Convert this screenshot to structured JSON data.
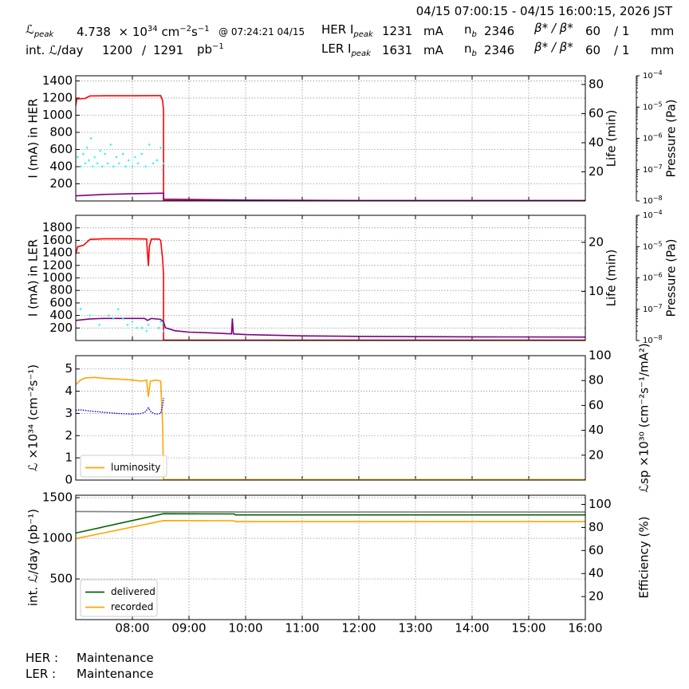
{
  "header": {
    "time_range": "04/15 07:00:15 - 04/15 16:00:15, 2026 JST",
    "lpeak_label": "peak",
    "lpeak_value": "4.738",
    "lpeak_exp": "34",
    "lpeak_unit": "cm",
    "lpeak_unit2": "s",
    "lpeak_time": "@ 07:24:21 04/15",
    "intl_label": "int. ",
    "intl_label2": "/day",
    "intl_value": "1200",
    "intl_sep": "/",
    "intl_max": "1291",
    "intl_unit": "pb",
    "her_ipeak_label": "HER I",
    "her_ipeak_sub": "peak",
    "her_ipeak_value": "1231",
    "ler_ipeak_label": "LER I",
    "ler_ipeak_sub": "peak",
    "ler_ipeak_value": "1631",
    "current_unit": "mA",
    "nb_label": "n",
    "nb_sub": "b",
    "her_nb": "2346",
    "ler_nb": "2346",
    "beta_label": "β* / β*",
    "her_beta": "60",
    "her_beta2": "/ 1",
    "ler_beta": "60",
    "ler_beta2": "/ 1",
    "beta_unit": "mm"
  },
  "status": {
    "her_label": "HER :",
    "her_value": "Maintenance",
    "ler_label": "LER :",
    "ler_value": "Maintenance"
  },
  "colors": {
    "current": "#ff0000",
    "life": "#800080",
    "pressure": "#00ffff",
    "luminosity": "#ffa500",
    "specific": "#0000ff",
    "delivered": "#006400",
    "recorded": "#ffa500",
    "reference": "#808080"
  },
  "chart_data": [
    {
      "type": "line",
      "panel": "HER",
      "xlabel": "",
      "ylabel": "I (mA) in HER",
      "y2label": "Life (min)",
      "y3label": "Pressure (Pa)",
      "xlim": [
        "07:00",
        "16:00"
      ],
      "ylim": [
        0,
        1460
      ],
      "y2lim": [
        0,
        86
      ],
      "y3lim_log10": [
        -8,
        -4
      ],
      "yticks": [
        200,
        400,
        600,
        800,
        1000,
        1200,
        1400
      ],
      "y2ticks": [
        20,
        40,
        60,
        80
      ],
      "y3ticks_exp": [
        -8,
        -7,
        -6,
        -5,
        -4
      ],
      "grid": true,
      "series": [
        {
          "role": "current",
          "axis": "y",
          "points": [
            [
              "07:00",
              1110
            ],
            [
              "07:01",
              1190
            ],
            [
              "07:10",
              1195
            ],
            [
              "07:15",
              1225
            ],
            [
              "07:30",
              1227
            ],
            [
              "08:00",
              1227
            ],
            [
              "08:25",
              1228
            ],
            [
              "08:30",
              1228
            ],
            [
              "08:32",
              1170
            ],
            [
              "08:33",
              1060
            ],
            [
              "08:33",
              5
            ],
            [
              "16:00",
              5
            ]
          ]
        },
        {
          "role": "life",
          "axis": "y2",
          "points": [
            [
              "07:00",
              3.5
            ],
            [
              "07:30",
              4.5
            ],
            [
              "08:00",
              5.0
            ],
            [
              "08:30",
              5.3
            ],
            [
              "08:33",
              5.3
            ],
            [
              "08:33",
              1.2
            ],
            [
              "10:00",
              0.6
            ],
            [
              "12:00",
              0.3
            ],
            [
              "16:00",
              0.3
            ]
          ]
        },
        {
          "role": "pressure",
          "axis": "y3",
          "points": [
            [
              "07:02",
              -6.6
            ],
            [
              "07:05",
              -6.9
            ],
            [
              "07:08",
              -6.5
            ],
            [
              "07:10",
              -6.8
            ],
            [
              "07:12",
              -6.3
            ],
            [
              "07:14",
              -6.7
            ],
            [
              "07:16",
              -6.0
            ],
            [
              "07:18",
              -6.9
            ],
            [
              "07:20",
              -6.6
            ],
            [
              "07:23",
              -6.8
            ],
            [
              "07:26",
              -6.4
            ],
            [
              "07:28",
              -6.9
            ],
            [
              "07:31",
              -6.5
            ],
            [
              "07:34",
              -6.8
            ],
            [
              "07:37",
              -6.2
            ],
            [
              "07:40",
              -6.9
            ],
            [
              "07:43",
              -6.6
            ],
            [
              "07:46",
              -6.8
            ],
            [
              "07:50",
              -6.5
            ],
            [
              "07:53",
              -6.9
            ],
            [
              "07:56",
              -6.7
            ],
            [
              "08:00",
              -6.9
            ],
            [
              "08:03",
              -6.6
            ],
            [
              "08:06",
              -6.8
            ],
            [
              "08:10",
              -6.5
            ],
            [
              "08:14",
              -6.9
            ],
            [
              "08:18",
              -6.2
            ],
            [
              "08:22",
              -6.8
            ],
            [
              "08:26",
              -6.7
            ],
            [
              "08:30",
              -6.3
            ],
            [
              "08:32",
              -7.0
            ],
            [
              "08:33",
              -6.8
            ]
          ]
        }
      ]
    },
    {
      "type": "line",
      "panel": "LER",
      "xlabel": "",
      "ylabel": "I (mA) in LER",
      "y2label": "Life (min)",
      "y3label": "Pressure (Pa)",
      "xlim": [
        "07:00",
        "16:00"
      ],
      "ylim": [
        0,
        2000
      ],
      "y2lim": [
        0,
        25.5
      ],
      "y3lim_log10": [
        -8,
        -4
      ],
      "yticks": [
        200,
        400,
        600,
        800,
        1000,
        1200,
        1400,
        1600,
        1800
      ],
      "y2ticks": [
        10,
        20
      ],
      "y3ticks_exp": [
        -8,
        -7,
        -6,
        -5,
        -4
      ],
      "grid": true,
      "series": [
        {
          "role": "current",
          "axis": "y",
          "points": [
            [
              "07:00",
              1380
            ],
            [
              "07:02",
              1500
            ],
            [
              "07:08",
              1520
            ],
            [
              "07:15",
              1615
            ],
            [
              "07:30",
              1625
            ],
            [
              "08:00",
              1625
            ],
            [
              "08:15",
              1622
            ],
            [
              "08:16",
              1400
            ],
            [
              "08:17",
              1190
            ],
            [
              "08:18",
              1500
            ],
            [
              "08:20",
              1620
            ],
            [
              "08:28",
              1622
            ],
            [
              "08:30",
              1600
            ],
            [
              "08:32",
              1300
            ],
            [
              "08:33",
              1050
            ],
            [
              "08:33",
              5
            ],
            [
              "16:00",
              5
            ]
          ]
        },
        {
          "role": "life",
          "axis": "y2",
          "points": [
            [
              "07:00",
              4.1
            ],
            [
              "07:15",
              4.4
            ],
            [
              "07:30",
              4.5
            ],
            [
              "08:00",
              4.5
            ],
            [
              "08:13",
              4.5
            ],
            [
              "08:16",
              4.1
            ],
            [
              "08:20",
              4.5
            ],
            [
              "08:30",
              4.3
            ],
            [
              "08:33",
              3.8
            ],
            [
              "08:35",
              2.6
            ],
            [
              "08:45",
              2.0
            ],
            [
              "09:00",
              1.7
            ],
            [
              "09:15",
              1.6
            ],
            [
              "09:30",
              1.5
            ],
            [
              "09:45",
              1.35
            ],
            [
              "09:46",
              4.5
            ],
            [
              "09:47",
              1.35
            ],
            [
              "10:00",
              1.2
            ],
            [
              "11:00",
              0.95
            ],
            [
              "12:00",
              0.85
            ],
            [
              "14:00",
              0.75
            ],
            [
              "16:00",
              0.7
            ]
          ]
        },
        {
          "role": "pressure",
          "axis": "y3",
          "points": [
            [
              "07:05",
              -7.0
            ],
            [
              "07:15",
              -7.2
            ],
            [
              "07:25",
              -7.5
            ],
            [
              "07:35",
              -7.2
            ],
            [
              "07:40",
              -7.3
            ],
            [
              "07:45",
              -7.0
            ],
            [
              "07:50",
              -7.3
            ],
            [
              "07:55",
              -7.5
            ],
            [
              "08:00",
              -7.4
            ],
            [
              "08:05",
              -7.6
            ],
            [
              "08:10",
              -7.6
            ],
            [
              "08:15",
              -7.7
            ],
            [
              "08:17",
              -7.5
            ],
            [
              "08:28",
              -7.6
            ],
            [
              "08:30",
              -7.4
            ],
            [
              "08:32",
              -7.5
            ],
            [
              "08:33",
              -7.7
            ]
          ]
        }
      ]
    },
    {
      "type": "line",
      "panel": "luminosity",
      "xlabel": "",
      "ylabel": "ℒ ×10³⁴ (cm⁻²s⁻¹)",
      "y2label": "ℒsp ×10³⁰ (cm⁻²s⁻¹/mA²)",
      "xlim": [
        "07:00",
        "16:00"
      ],
      "ylim": [
        0,
        5.6
      ],
      "y2lim": [
        0,
        100
      ],
      "yticks": [
        0,
        1,
        2,
        3,
        4,
        5
      ],
      "y2ticks": [
        20,
        40,
        60,
        80,
        100
      ],
      "grid": true,
      "legend": {
        "position": "bottom-left",
        "entries": [
          "luminosity"
        ]
      },
      "series": [
        {
          "name": "luminosity",
          "role": "luminosity",
          "axis": "y",
          "points": [
            [
              "07:00",
              4.3
            ],
            [
              "07:05",
              4.5
            ],
            [
              "07:10",
              4.6
            ],
            [
              "07:20",
              4.62
            ],
            [
              "07:30",
              4.58
            ],
            [
              "07:45",
              4.55
            ],
            [
              "08:00",
              4.5
            ],
            [
              "08:10",
              4.45
            ],
            [
              "08:15",
              4.5
            ],
            [
              "08:17",
              3.75
            ],
            [
              "08:19",
              4.45
            ],
            [
              "08:25",
              4.5
            ],
            [
              "08:30",
              4.45
            ],
            [
              "08:32",
              2.5
            ],
            [
              "08:33",
              0.02
            ],
            [
              "16:00",
              0.02
            ]
          ]
        },
        {
          "role": "specific",
          "axis": "y2",
          "points": [
            [
              "07:00",
              56
            ],
            [
              "07:05",
              56.5
            ],
            [
              "07:15",
              55.5
            ],
            [
              "07:30",
              54.5
            ],
            [
              "07:45",
              53.5
            ],
            [
              "08:00",
              53
            ],
            [
              "08:10",
              53.5
            ],
            [
              "08:14",
              55
            ],
            [
              "08:17",
              58
            ],
            [
              "08:20",
              54.5
            ],
            [
              "08:25",
              53
            ],
            [
              "08:30",
              53.5
            ],
            [
              "08:32",
              60
            ],
            [
              "08:33",
              66
            ]
          ]
        }
      ]
    },
    {
      "type": "line",
      "panel": "integrated",
      "xlabel": "",
      "ylabel": "int. ℒ/day (pb⁻¹)",
      "y2label": "Efficiency (%)",
      "xlim": [
        "07:00",
        "16:00"
      ],
      "ylim": [
        0,
        1530
      ],
      "y2lim": [
        0,
        108
      ],
      "yticks": [
        500,
        1000,
        1500
      ],
      "y2ticks": [
        20,
        40,
        60,
        80,
        100
      ],
      "xticks": [
        "08:00",
        "09:00",
        "10:00",
        "11:00",
        "12:00",
        "13:00",
        "14:00",
        "15:00",
        "16:00"
      ],
      "grid": true,
      "legend": {
        "position": "bottom-left",
        "entries": [
          "delivered",
          "recorded"
        ]
      },
      "series": [
        {
          "name": "delivered",
          "role": "delivered",
          "axis": "y",
          "points": [
            [
              "07:00",
              1065
            ],
            [
              "08:33",
              1302
            ],
            [
              "09:48",
              1300
            ],
            [
              "09:49",
              1288
            ],
            [
              "16:00",
              1288
            ]
          ]
        },
        {
          "name": "recorded",
          "role": "recorded",
          "axis": "y",
          "points": [
            [
              "07:00",
              995
            ],
            [
              "08:33",
              1218
            ],
            [
              "09:48",
              1216
            ],
            [
              "09:49",
              1205
            ],
            [
              "16:00",
              1205
            ]
          ]
        },
        {
          "role": "reference",
          "axis": "y",
          "points": [
            [
              "07:00",
              1330
            ],
            [
              "08:33",
              1325
            ],
            [
              "09:48",
              1325
            ],
            [
              "09:49",
              1323
            ],
            [
              "16:00",
              1323
            ]
          ]
        }
      ]
    }
  ]
}
